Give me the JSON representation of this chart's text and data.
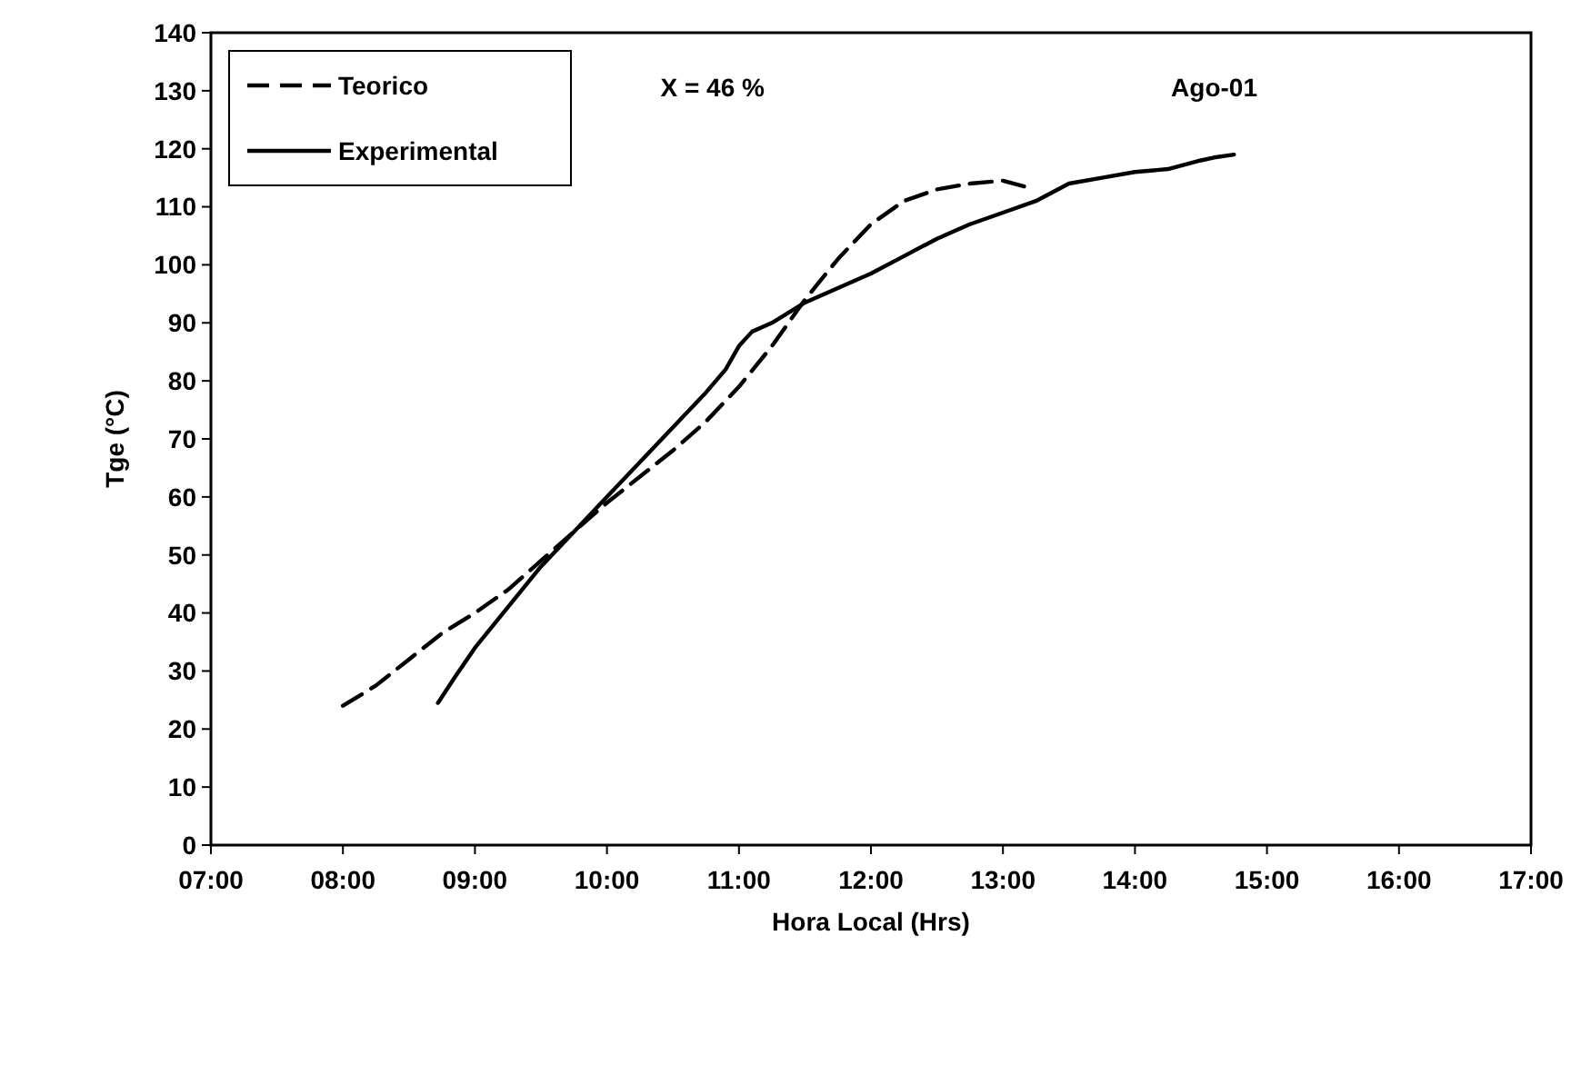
{
  "chart_data": {
    "type": "line",
    "xlabel": "Hora Local (Hrs)",
    "ylabel": "Tge (°C)",
    "annotations": [
      "X = 46 %",
      "Ago-01"
    ],
    "xlim": [
      7,
      17
    ],
    "xticks": [
      {
        "value": 7,
        "label": "07:00"
      },
      {
        "value": 8,
        "label": "08:00"
      },
      {
        "value": 9,
        "label": "09:00"
      },
      {
        "value": 10,
        "label": "10:00"
      },
      {
        "value": 11,
        "label": "11:00"
      },
      {
        "value": 12,
        "label": "12:00"
      },
      {
        "value": 13,
        "label": "13:00"
      },
      {
        "value": 14,
        "label": "14:00"
      },
      {
        "value": 15,
        "label": "15:00"
      },
      {
        "value": 16,
        "label": "16:00"
      },
      {
        "value": 17,
        "label": "17:00"
      }
    ],
    "ylim": [
      0,
      140
    ],
    "yticks": [
      0,
      10,
      20,
      30,
      40,
      50,
      60,
      70,
      80,
      90,
      100,
      110,
      120,
      130,
      140
    ],
    "grid": false,
    "legend": "top left",
    "marker": "none",
    "series": [
      {
        "name": "Teorico",
        "color": "#000000",
        "line_style": "dashed",
        "x": [
          8,
          8.25,
          8.5,
          8.75,
          9,
          9.25,
          9.5,
          9.75,
          10,
          10.25,
          10.5,
          10.75,
          11,
          11.25,
          11.5,
          11.75,
          12,
          12.25,
          12.5,
          12.75,
          13,
          13.16
        ],
        "values": [
          24,
          27.5,
          32,
          36.5,
          40,
          44,
          49,
          54,
          59,
          63.5,
          68,
          73,
          79,
          86,
          94,
          101,
          107,
          111,
          113,
          114,
          114.5,
          113.5
        ]
      },
      {
        "name": "Experimental",
        "color": "#000000",
        "line_style": "solid",
        "x": [
          8.72,
          8.85,
          9,
          9.25,
          9.5,
          9.75,
          10,
          10.25,
          10.5,
          10.75,
          10.9,
          11,
          11.1,
          11.25,
          11.5,
          11.75,
          12,
          12.25,
          12.5,
          12.75,
          13,
          13.25,
          13.5,
          13.75,
          14,
          14.25,
          14.5,
          14.6,
          14.75
        ],
        "values": [
          24.5,
          29,
          34,
          41,
          48,
          54,
          60,
          66,
          72,
          78,
          82,
          86,
          88.5,
          90,
          93.5,
          96,
          98.5,
          101.5,
          104.5,
          107,
          109,
          111,
          114,
          115,
          116,
          116.5,
          118,
          118.5,
          119
        ]
      }
    ]
  }
}
